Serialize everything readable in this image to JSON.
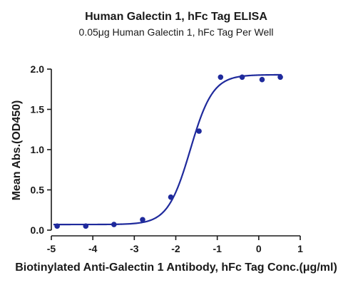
{
  "chart_data": {
    "type": "scatter",
    "title": "Human Galectin 1, hFc Tag ELISA",
    "subtitle": "0.05μg Human Galectin 1, hFc Tag Per Well",
    "xlabel": "Biotinylated Anti-Galectin 1 Antibody, hFc Tag Conc.(μg/ml)",
    "ylabel": "Mean Abs.(OD450)",
    "xlim": [
      -5,
      1
    ],
    "ylim": [
      0,
      2.0
    ],
    "x_ticks": [
      "-5",
      "-4",
      "-3",
      "-2",
      "-1",
      "0",
      "1"
    ],
    "y_ticks": [
      "0.0",
      "0.5",
      "1.0",
      "1.5",
      "2.0"
    ],
    "grid": false,
    "colors": {
      "series": "#1f2a9c"
    },
    "series": [
      {
        "points": [
          {
            "x": -4.86,
            "y": 0.05
          },
          {
            "x": -4.17,
            "y": 0.05
          },
          {
            "x": -3.49,
            "y": 0.07
          },
          {
            "x": -2.8,
            "y": 0.13
          },
          {
            "x": -2.12,
            "y": 0.41
          },
          {
            "x": -1.44,
            "y": 1.23
          },
          {
            "x": -0.92,
            "y": 1.9
          },
          {
            "x": -0.4,
            "y": 1.9
          },
          {
            "x": 0.08,
            "y": 1.87
          },
          {
            "x": 0.52,
            "y": 1.9
          }
        ],
        "fit": {
          "bottom": 0.07,
          "top": 1.93,
          "logEC50": -1.65,
          "hill": 1.6
        }
      }
    ]
  }
}
